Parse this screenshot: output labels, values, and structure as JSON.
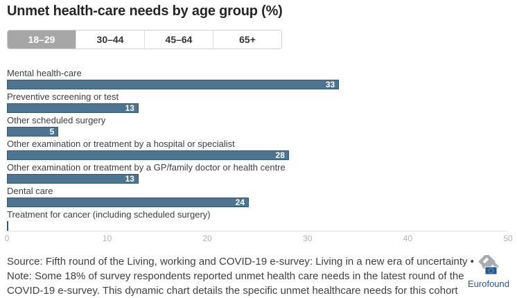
{
  "title": "Unmet health-care needs by age group (%)",
  "tabs": {
    "labels": [
      "18–29",
      "30–44",
      "45–64",
      "65+"
    ],
    "active": "18–29"
  },
  "chart_data": {
    "type": "bar",
    "orientation": "horizontal",
    "categories": [
      "Mental health-care",
      "Preventive screening or test",
      "Other scheduled surgery",
      "Other examination or treatment by a hospital or specialist",
      "Other examination or treatment by a GP/family doctor or health centre",
      "Dental care",
      "Treatment for cancer (including scheduled surgery)"
    ],
    "values": [
      33,
      13,
      5,
      28,
      13,
      24,
      0
    ],
    "xlim": [
      0,
      50
    ],
    "xticks": [
      0,
      10,
      20,
      30,
      40,
      50
    ],
    "grid": false,
    "legend": false,
    "bar_color": "#4e7490",
    "bar_border_color": "#2c5a77",
    "value_label_color": "#ffffff"
  },
  "footer": {
    "lines": [
      "Source: Fifth round of the Living, working and COVID-19 e-survey: Living in a new era of uncertainty •",
      "Note: Some 18% of survey respondents reported unmet health care needs in the latest round of the",
      "COVID-19 e-survey. This dynamic chart details the specific unmet healthcare needs for this cohort"
    ]
  },
  "logo": {
    "text": "Eurofound",
    "accent_color": "#2257a4"
  },
  "colors": {
    "active_tab_bg": "#a6a6a6",
    "tick_label": "#b1b1b1"
  }
}
